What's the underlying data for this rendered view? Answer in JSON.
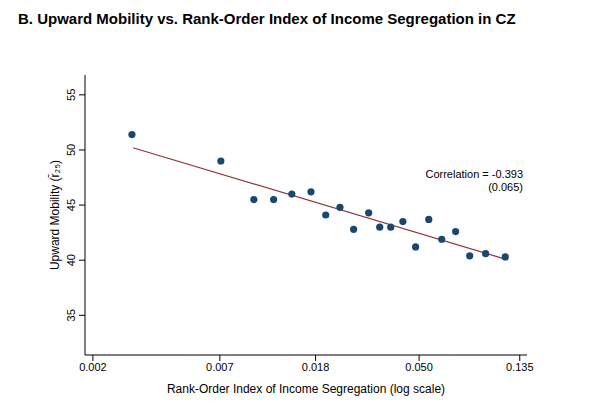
{
  "chart_data": {
    "type": "scatter",
    "title": "B. Upward Mobility vs. Rank-Order Index of Income Segregation in CZ",
    "x_label": "Rank-Order Index of Income Segregation (log scale)",
    "y_label": "Upward Mobility (r̄₂₅)",
    "x": [
      0.00294,
      0.00707,
      0.00979,
      0.0119,
      0.01424,
      0.0172,
      0.0199,
      0.0229,
      0.0262,
      0.0304,
      0.0339,
      0.0378,
      0.0426,
      0.0483,
      0.055,
      0.0625,
      0.0717,
      0.0824,
      0.0964,
      0.117
    ],
    "values": [
      51.4,
      49.0,
      45.5,
      45.5,
      46.0,
      46.2,
      44.1,
      44.8,
      42.8,
      44.3,
      43.0,
      43.0,
      43.5,
      41.2,
      43.7,
      41.9,
      42.6,
      40.4,
      40.6,
      40.3
    ],
    "color": "#1a476f",
    "marker": "circle",
    "fit_line": {
      "x": [
        0.00297,
        0.117
      ],
      "values": [
        50.2,
        40.1
      ],
      "color": "#90353b",
      "line_style": "solid"
    },
    "annotations": [
      "Correlation = -0.393",
      "(0.065)"
    ],
    "log": "x",
    "xlim": [
      0.00185,
      0.145
    ],
    "xticks": [
      0.002,
      0.007,
      0.018,
      {
        "value": 0.05,
        "label": "0.050"
      },
      0.135
    ],
    "ylim": [
      31.4,
      56.8
    ],
    "yticks": [
      35,
      40,
      45,
      50,
      55
    ],
    "grid": false
  }
}
